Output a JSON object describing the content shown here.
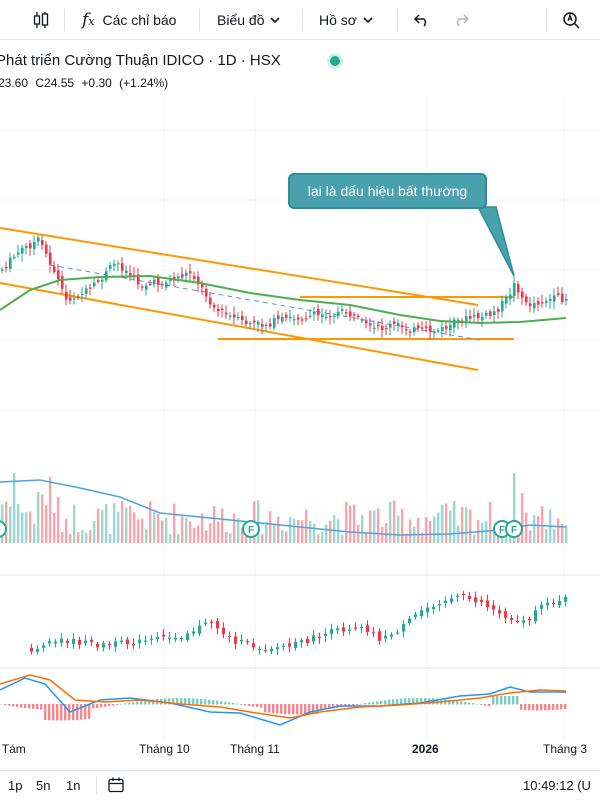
{
  "toolbar": {
    "indicators_label": "Các chỉ báo",
    "chart_label": "Biểu đồ",
    "profile_label": "Hồ sơ"
  },
  "symbol": {
    "title": "Phát triển Cường Thuận IDICO · 1D · HSX",
    "ohlc_low": "23.60",
    "ohlc_close": "C24.55",
    "ohlc_change": "+0.30",
    "ohlc_change_pct": "(+1.24%)",
    "up_color": "#22ab94",
    "down_color": "#f23645"
  },
  "annotation": {
    "callout_text": "lại là dấu hiệu bất thường"
  },
  "time_axis": {
    "labels": [
      "g Tám",
      "Tháng 10",
      "Tháng 11",
      "2026",
      "Tháng 3"
    ]
  },
  "bottom": {
    "ranges": [
      "1p",
      "5n",
      "1n"
    ],
    "clock": "10:49:12 (U"
  },
  "colors": {
    "channel": "#ff9800",
    "ma": "#4caf50",
    "trend_dashed": "#5b8def",
    "volume_ma": "#4fa3e0",
    "macd_line": "#2196f3",
    "signal_line": "#ff6d00",
    "callout_bg": "#48a1ad"
  }
}
